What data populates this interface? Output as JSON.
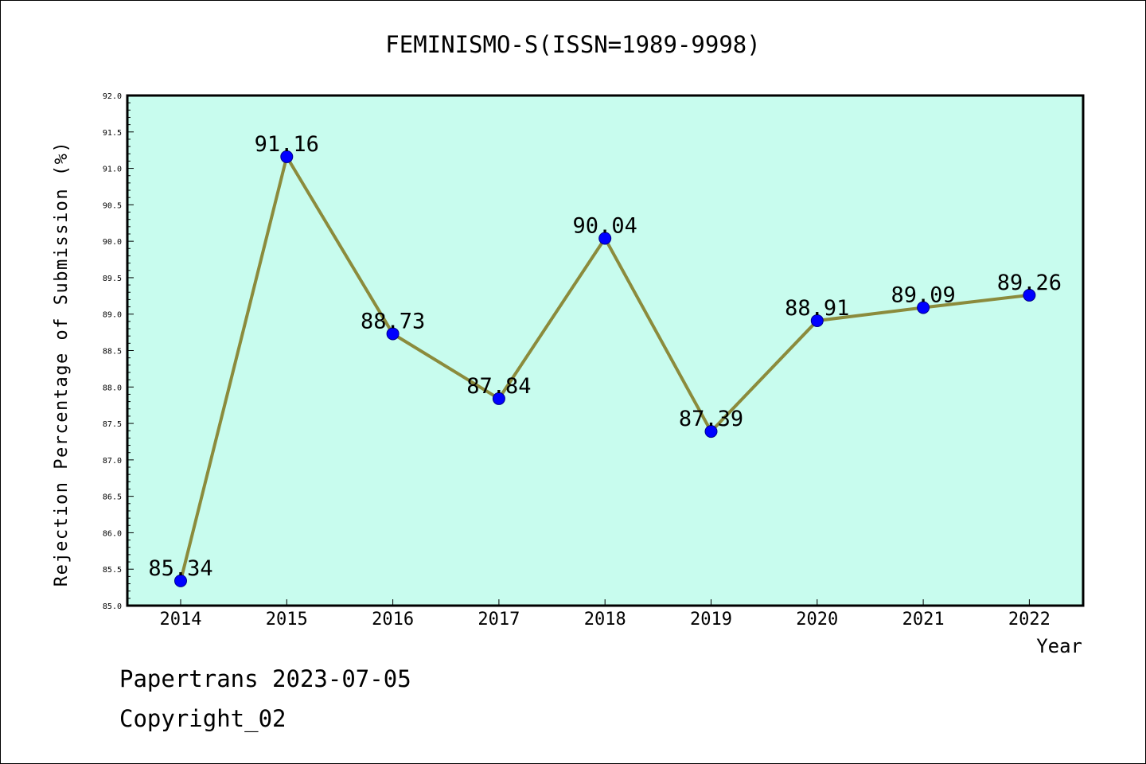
{
  "chart_data": {
    "type": "line",
    "title": "FEMINISMO-S(ISSN=1989-9998)",
    "xlabel": "Year",
    "ylabel": "Rejection Percentage of Submission (%)",
    "categories": [
      "2014",
      "2015",
      "2016",
      "2017",
      "2018",
      "2019",
      "2020",
      "2021",
      "2022"
    ],
    "values": [
      85.34,
      91.16,
      88.73,
      87.84,
      90.04,
      87.39,
      88.91,
      89.09,
      89.26
    ],
    "data_labels": [
      "85.34",
      "91.16",
      "88.73",
      "87.84",
      "90.04",
      "87.39",
      "88.91",
      "89.09",
      "89.26"
    ],
    "ylim": [
      85.0,
      92.0
    ],
    "yticks": [
      "85.0",
      "85.5",
      "86.0",
      "86.5",
      "87.0",
      "87.5",
      "88.0",
      "88.5",
      "89.0",
      "89.5",
      "90.0",
      "90.5",
      "91.0",
      "91.5",
      "92.0"
    ],
    "grid": false,
    "legend": "none",
    "colors": {
      "plot_background": "#c8fcee",
      "line": "#8b8b3c",
      "marker": "#0000ff",
      "marker_edge": "#00008b"
    }
  },
  "footer": {
    "date_line": "Papertrans 2023-07-05",
    "copyright_line": "Copyright_02"
  }
}
